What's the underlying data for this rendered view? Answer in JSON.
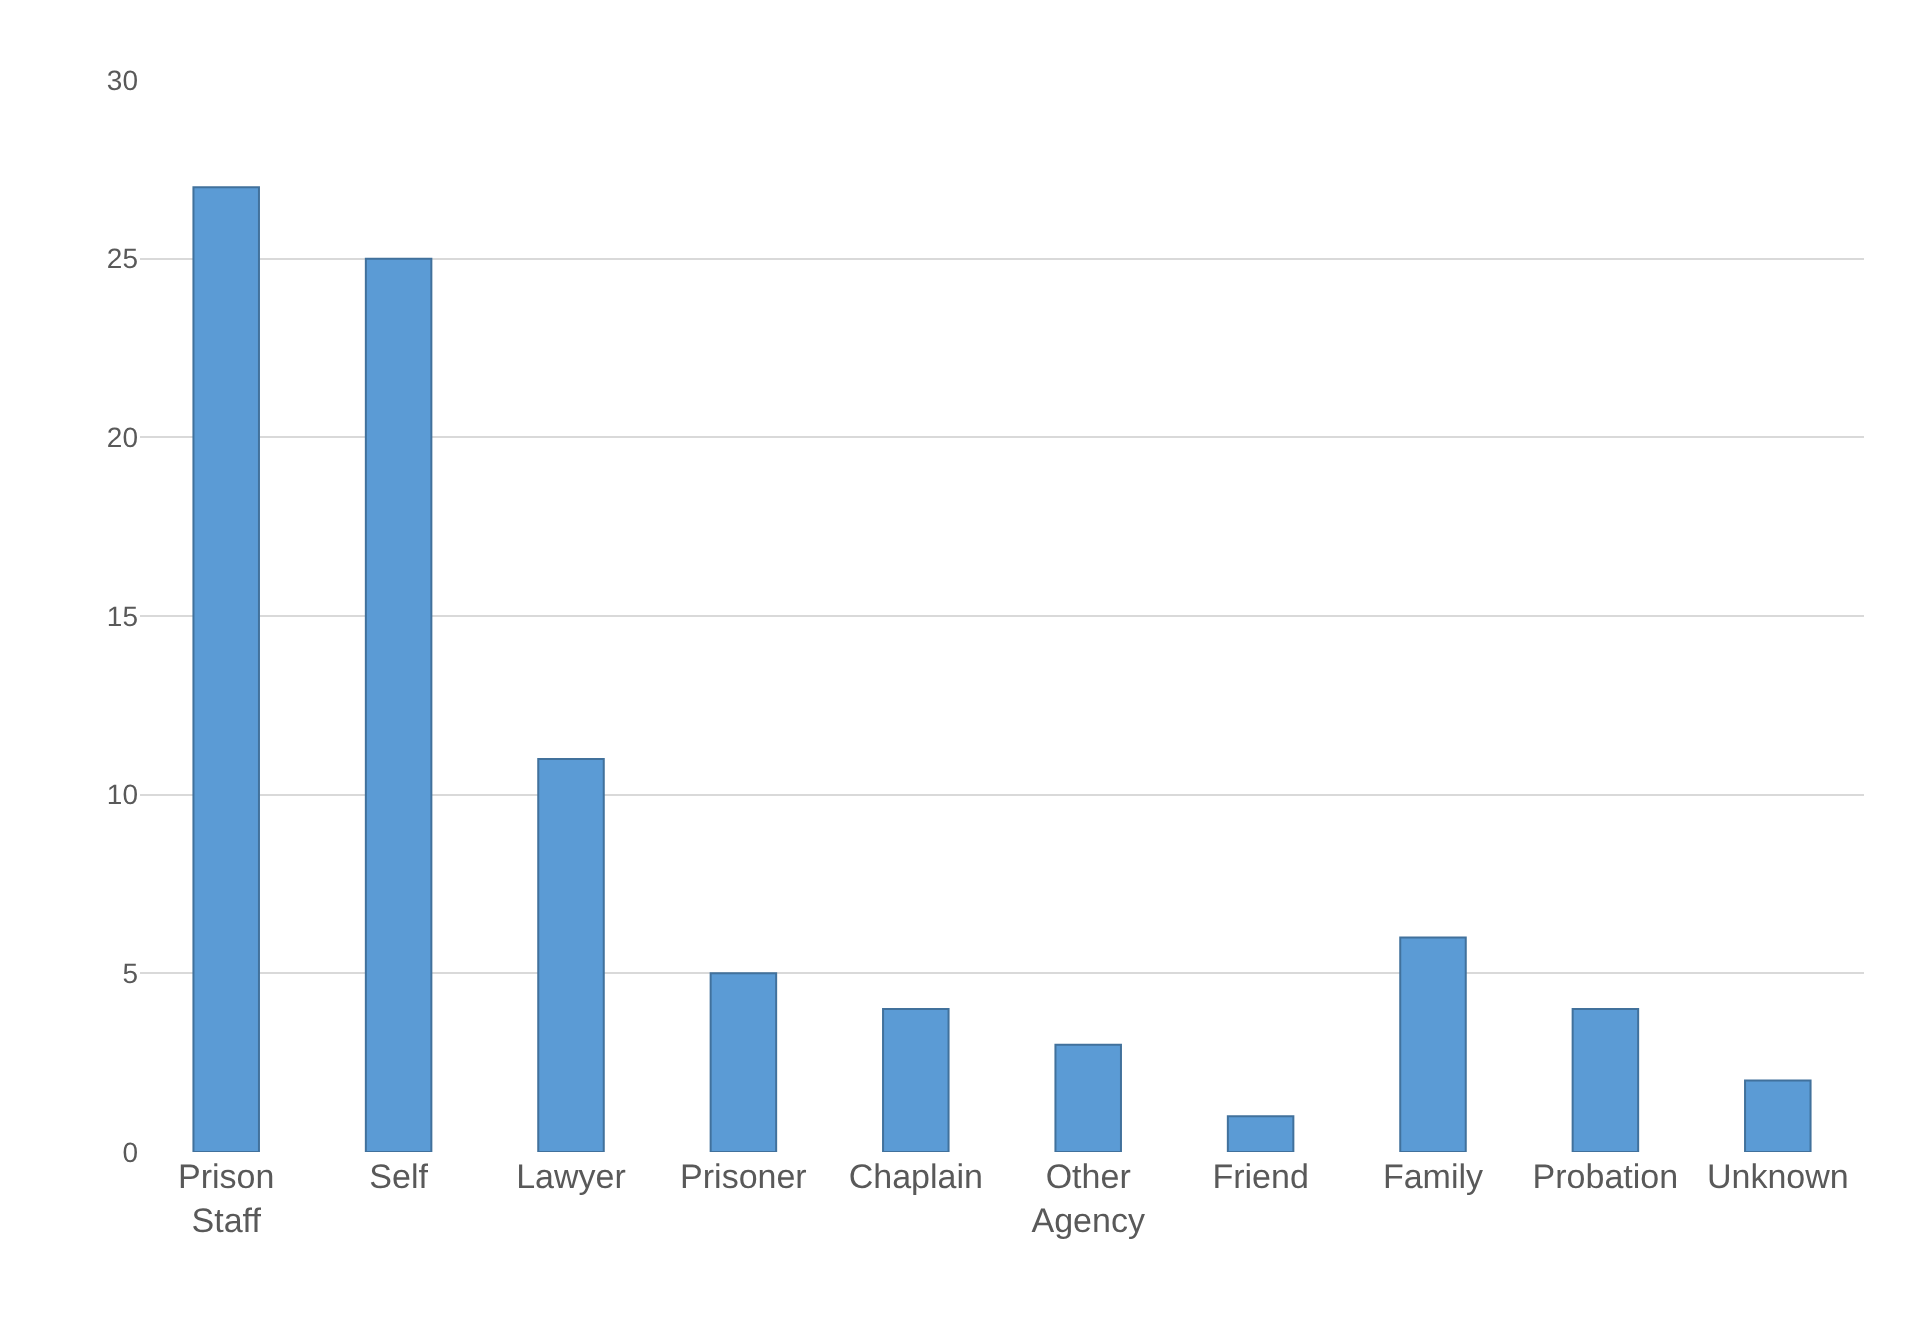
{
  "chart_data": {
    "type": "bar",
    "categories": [
      "Prison Staff",
      "Self",
      "Lawyer",
      "Prisoner",
      "Chaplain",
      "Other Agency",
      "Friend",
      "Family",
      "Probation",
      "Unknown"
    ],
    "values": [
      27,
      25,
      11,
      5,
      4,
      3,
      1,
      6,
      4,
      2
    ],
    "color": "#5b9bd5",
    "ylim": [
      0,
      30
    ],
    "yticks": [
      0,
      5,
      10,
      15,
      20,
      25,
      30
    ],
    "grid": "y"
  }
}
